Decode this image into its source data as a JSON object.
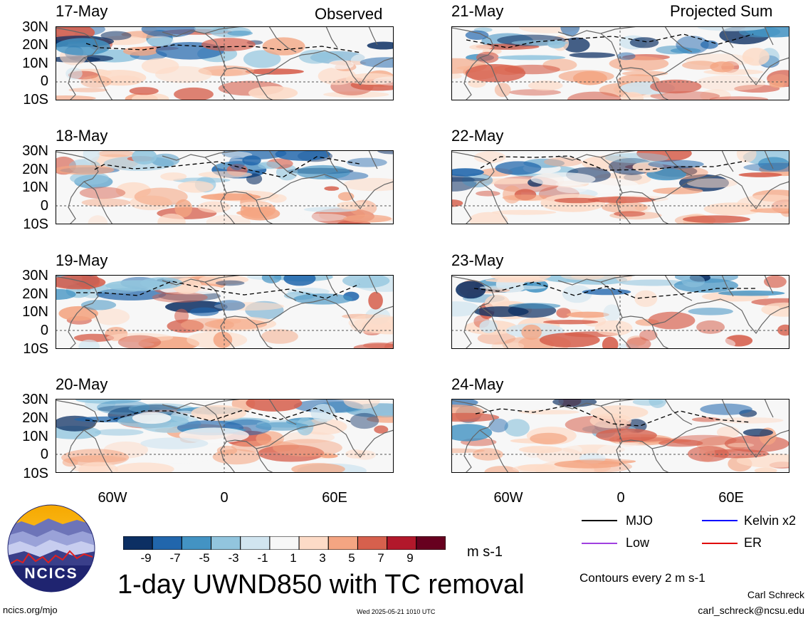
{
  "columns": [
    {
      "title": "Observed",
      "panels": [
        "17-May",
        "18-May",
        "19-May",
        "20-May"
      ]
    },
    {
      "title": "Projected Sum",
      "panels": [
        "21-May",
        "22-May",
        "23-May",
        "24-May"
      ]
    }
  ],
  "lat_labels": [
    "30N",
    "20N",
    "10N",
    "0",
    "10S"
  ],
  "lon_labels": [
    "60W",
    "0",
    "60E"
  ],
  "colorbar": {
    "labels": [
      "-9",
      "-7",
      "-5",
      "-3",
      "-1",
      "1",
      "3",
      "5",
      "7",
      "9"
    ],
    "colors": [
      "#0c2f63",
      "#2166ac",
      "#4393c3",
      "#92c5de",
      "#d1e5f0",
      "#f7f7f7",
      "#fddbc7",
      "#f4a582",
      "#d6604d",
      "#b2182b",
      "#67001f"
    ],
    "units": "m s-1"
  },
  "title": "1-day UWND850 with TC removal",
  "legend": {
    "items": [
      {
        "label": "MJO",
        "color": "#000000"
      },
      {
        "label": "Kelvin x2",
        "color": "#0000ff"
      },
      {
        "label": "Low",
        "color": "#a040e0"
      },
      {
        "label": "ER",
        "color": "#e00000"
      }
    ],
    "contour_note": "Contours every 2 m s-1"
  },
  "footer": {
    "url": "ncics.org/mjo",
    "timestamp": "Wed 2025-05-21 1010 UTC",
    "author": "Carl Schreck",
    "email": "carl_schreck@ncsu.edu"
  },
  "logo": {
    "text": "NCICS"
  }
}
